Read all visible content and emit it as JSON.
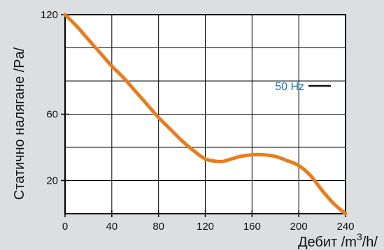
{
  "chart_data": {
    "type": "line",
    "xlabel": "Дебит /m",
    "xlabel_sup": "3",
    "xlabel_tail": "/h/",
    "ylabel": "Статично налягане /Pa/",
    "xlim": [
      0,
      240
    ],
    "ylim": [
      0,
      120
    ],
    "x_ticks": [
      {
        "value": 0,
        "label": "0"
      },
      {
        "value": 40,
        "label": "40"
      },
      {
        "value": 80,
        "label": "80"
      },
      {
        "value": 120,
        "label": "120"
      },
      {
        "value": 160,
        "label": "160"
      },
      {
        "value": 200,
        "label": "200"
      },
      {
        "value": 240,
        "label": "240"
      }
    ],
    "y_ticks": [
      {
        "value": 20,
        "label": "20"
      },
      {
        "value": 60,
        "label": "60"
      },
      {
        "value": 120,
        "label": "120"
      }
    ],
    "y_gridlines": [
      20,
      40,
      60,
      80,
      100
    ],
    "grid": true,
    "legend_position": "right",
    "series": [
      {
        "name": "50 Hz",
        "color": "#e87d1e",
        "legend_swatch_color": "#111111",
        "legend_text_color": "#1a73b8",
        "x": [
          0,
          10,
          20,
          30,
          40,
          50,
          60,
          70,
          80,
          90,
          100,
          110,
          120,
          130,
          135,
          140,
          150,
          160,
          170,
          180,
          190,
          200,
          210,
          220,
          230,
          240
        ],
        "y": [
          120,
          113,
          105,
          97,
          89,
          82,
          74,
          66,
          58,
          51,
          44,
          38,
          33,
          31.5,
          31.5,
          32.5,
          34.5,
          35.5,
          35.5,
          34.5,
          32,
          29,
          23,
          14,
          6,
          0
        ]
      }
    ]
  }
}
